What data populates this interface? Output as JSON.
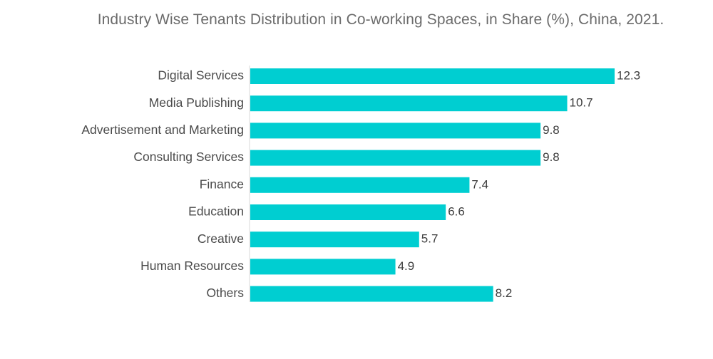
{
  "chart_data": {
    "type": "bar",
    "orientation": "horizontal",
    "title": "Industry Wise Tenants Distribution in Co-working Spaces, in Share (%), China, 2021.",
    "xlabel": "",
    "ylabel": "",
    "xlim": [
      0,
      12.3
    ],
    "grid": false,
    "legend": "none",
    "categories": [
      "Digital Services",
      "Media Publishing",
      "Advertisement and Marketing",
      "Consulting Services",
      "Finance",
      "Education",
      "Creative",
      "Human Resources",
      "Others"
    ],
    "values": [
      12.3,
      10.7,
      9.8,
      9.8,
      7.4,
      6.6,
      5.7,
      4.9,
      8.2
    ],
    "value_labels": [
      "12.3",
      "10.7",
      "9.8",
      "9.8",
      "7.4",
      "6.6",
      "5.7",
      "4.9",
      "8.2"
    ],
    "bar_color": "#00CED1"
  }
}
